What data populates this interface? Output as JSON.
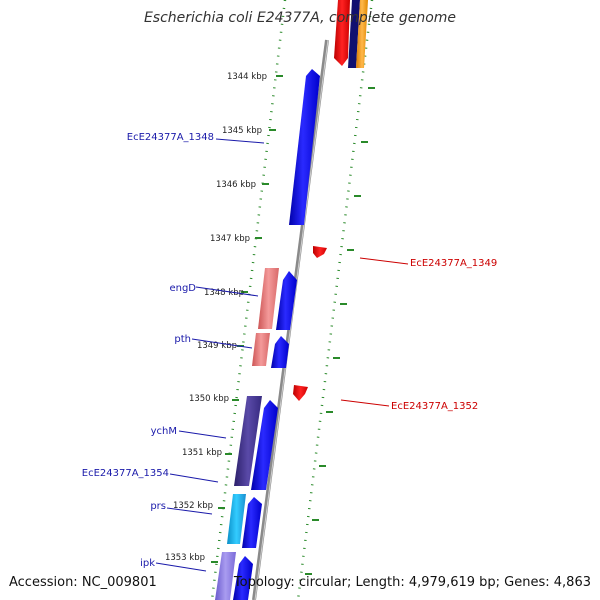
{
  "title": "Escherichia coli E24377A, complete genome",
  "footer": {
    "accession": "Accession: NC_009801",
    "summary": "Topology: circular; Length: 4,979,619 bp; Genes: 4,863"
  },
  "colors": {
    "forward_cds": "#1a1aee",
    "reverse_cds": "#ee1111",
    "gene_label": "#1a1aaa",
    "reverse_label": "#cc0000",
    "tick_green": "#2a8a2a",
    "backbone": "#8a8a8a"
  },
  "ruler": {
    "unit": "kbp",
    "ticks": [
      {
        "kbp": 1344,
        "label": "1344 kbp"
      },
      {
        "kbp": 1345,
        "label": "1345 kbp"
      },
      {
        "kbp": 1346,
        "label": "1346 kbp"
      },
      {
        "kbp": 1347,
        "label": "1347 kbp"
      },
      {
        "kbp": 1348,
        "label": "1348 kbp"
      },
      {
        "kbp": 1349,
        "label": "1349 kbp"
      },
      {
        "kbp": 1350,
        "label": "1350 kbp"
      },
      {
        "kbp": 1351,
        "label": "1351 kbp"
      },
      {
        "kbp": 1352,
        "label": "1352 kbp"
      },
      {
        "kbp": 1353,
        "label": "1353 kbp"
      }
    ]
  },
  "left_labels": [
    {
      "text": "EcE24377A_1348"
    },
    {
      "text": "engD"
    },
    {
      "text": "pth"
    },
    {
      "text": "ychM"
    },
    {
      "text": "EcE24377A_1354"
    },
    {
      "text": "prs"
    },
    {
      "text": "ipk"
    }
  ],
  "right_labels": [
    {
      "text": "EcE24377A_1349"
    },
    {
      "text": "EcE24377A_1352"
    }
  ]
}
